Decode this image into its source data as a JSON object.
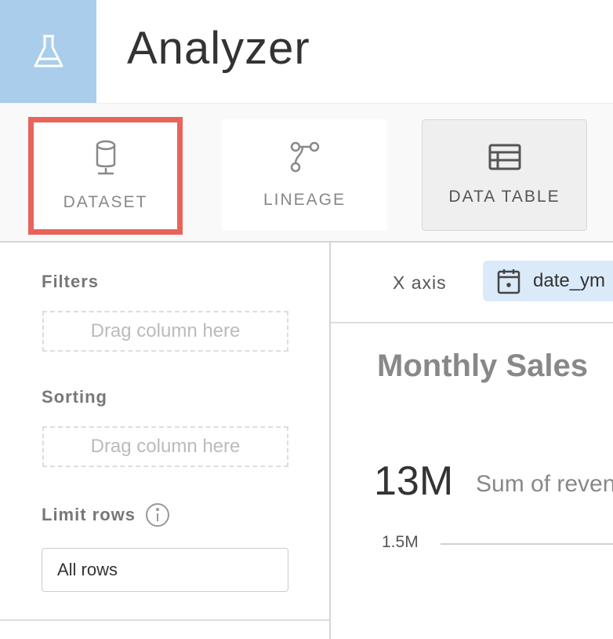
{
  "header": {
    "title": "Analyzer",
    "logo_icon": "flask-icon",
    "logo_color": "#a9cdeb"
  },
  "toolbar": {
    "buttons": [
      {
        "label": "DATASET",
        "icon": "database-icon",
        "highlighted": true,
        "highlight_color": "#e8645a"
      },
      {
        "label": "LINEAGE",
        "icon": "lineage-icon"
      },
      {
        "label": "DATA TABLE",
        "icon": "table-icon",
        "active": true
      }
    ]
  },
  "sidebar": {
    "filters_label": "Filters",
    "filters_placeholder": "Drag column here",
    "sorting_label": "Sorting",
    "sorting_placeholder": "Drag column here",
    "limit_label": "Limit rows",
    "limit_value": "All rows"
  },
  "main": {
    "x_axis_label": "X axis",
    "x_axis_value": "date_ym",
    "chart_title": "Monthly Sales",
    "kpi_value": "13M",
    "kpi_label": "Sum of revenue",
    "y_tick": "1.5M"
  }
}
